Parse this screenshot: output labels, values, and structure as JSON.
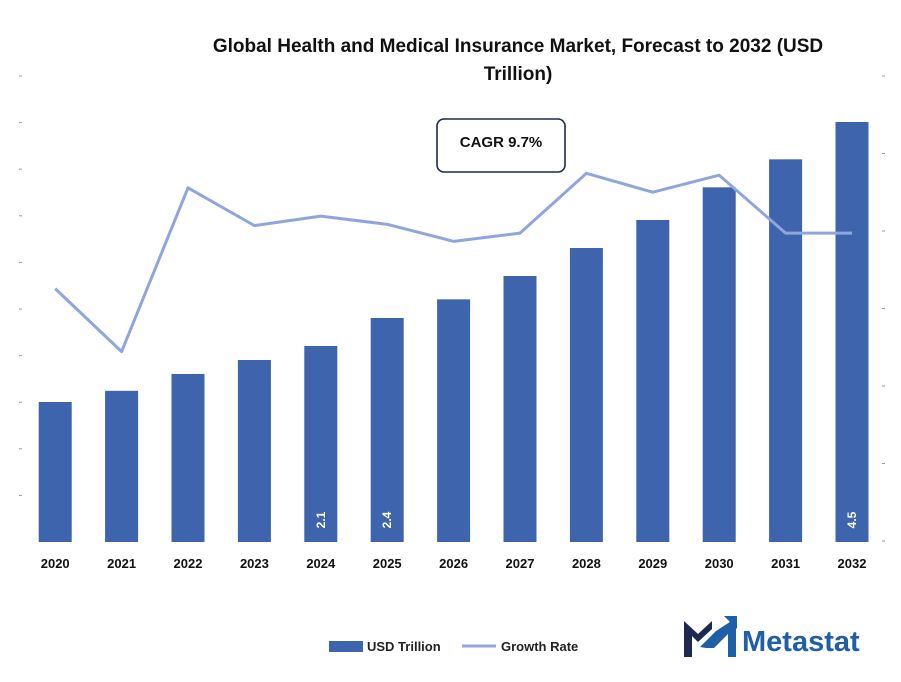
{
  "chart_data": {
    "type": "bar",
    "title": "Global Health and Medical Insurance Market, Forecast to 2032 (USD Trillion)",
    "categories": [
      "2020",
      "2021",
      "2022",
      "2023",
      "2024",
      "2025",
      "2026",
      "2027",
      "2028",
      "2029",
      "2030",
      "2031",
      "2032"
    ],
    "series": [
      {
        "name": "USD Trillion",
        "type": "bar",
        "color": "#3d64ad",
        "values": [
          1.5,
          1.62,
          1.8,
          1.95,
          2.1,
          2.4,
          2.6,
          2.85,
          3.15,
          3.45,
          3.8,
          4.1,
          4.5
        ],
        "data_labels": [
          "",
          "",
          "",
          "",
          "2.1",
          "2.4",
          "",
          "",
          "",
          "",
          "",
          "",
          "4.5"
        ]
      },
      {
        "name": "Growth Rate",
        "type": "line",
        "color": "#8fa6dc",
        "axis": "secondary",
        "values": [
          0.098,
          0.088,
          0.114,
          0.108,
          0.1095,
          0.1082,
          0.1055,
          0.1068,
          0.1163,
          0.1133,
          0.116,
          0.1068,
          0.1068
        ]
      }
    ],
    "ylim": [
      0,
      4.5
    ],
    "y2lim": [
      0.08,
      0.12
    ],
    "axis_tick_labels_visible": false,
    "grid": false,
    "legend_position": "bottom-center",
    "annotations": [
      {
        "text": "CAGR 9.7%"
      }
    ]
  },
  "legend": {
    "items": [
      {
        "label": "USD Trillion",
        "swatch": "bar",
        "color": "#3d64ad"
      },
      {
        "label": "Growth Rate",
        "swatch": "line",
        "color": "#8fa6dc"
      }
    ]
  },
  "brand": {
    "name": "Metastat",
    "logo_icon": "metastat-m-logo-icon",
    "colors": {
      "dark": "#1b2a4e",
      "accent": "#1f5fa8"
    }
  }
}
